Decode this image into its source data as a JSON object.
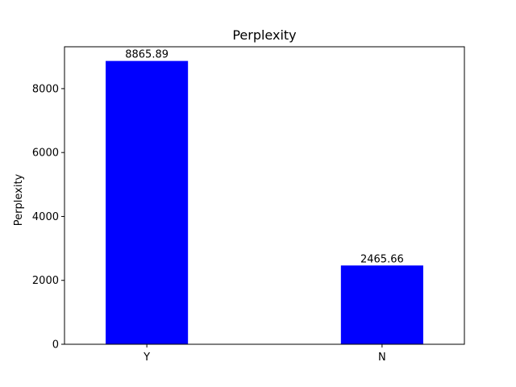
{
  "chart_data": {
    "type": "bar",
    "title": "Perplexity",
    "xlabel": "",
    "ylabel": "Perplexity",
    "categories": [
      "Y",
      "N"
    ],
    "values": [
      8865.89,
      2465.66
    ],
    "value_labels": [
      "8865.89",
      "2465.66"
    ],
    "ylim": [
      0,
      9310
    ],
    "yticks": [
      0,
      2000,
      4000,
      6000,
      8000
    ],
    "ytick_labels": [
      "0",
      "2000",
      "4000",
      "6000",
      "8000"
    ],
    "bar_color": "#0000ff",
    "grid": false,
    "legend": "none"
  }
}
